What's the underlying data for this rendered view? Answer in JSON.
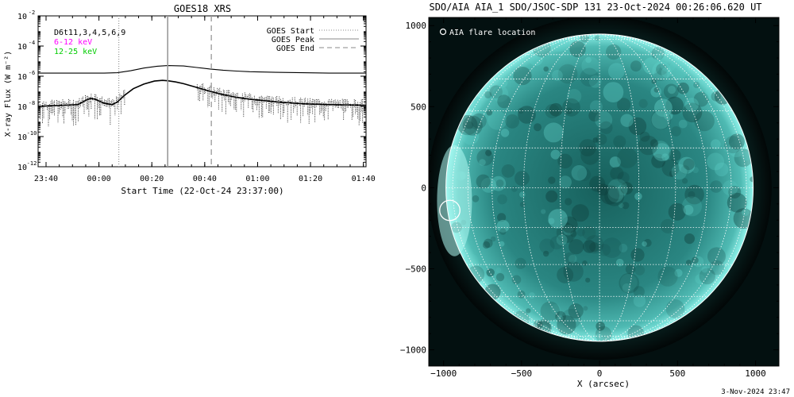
{
  "goes_chart": {
    "title": "GOES18 XRS",
    "ylabel": "X-ray Flux (W m⁻²)",
    "xlabel": "Start Time (22-Oct-24 23:37:00)",
    "legend_left": [
      {
        "text": "D6t11,3,4,5,6,9",
        "color": "#000000"
      },
      {
        "text": "6-12 keV",
        "color": "#ff00ff"
      },
      {
        "text": "12-25 keV",
        "color": "#00cc00"
      }
    ],
    "legend_right": [
      {
        "text": "GOES Start",
        "dash": "1,2",
        "color": "#888888"
      },
      {
        "text": "GOES Peak",
        "dash": "",
        "color": "#888888"
      },
      {
        "text": "GOES End",
        "dash": "6,4",
        "color": "#888888"
      }
    ]
  },
  "chart_data": [
    {
      "type": "line",
      "title": "GOES18 XRS",
      "xlabel": "Start Time (22-Oct-24 23:37:00)",
      "ylabel": "X-ray Flux (W m⁻²)",
      "x_units": "minutes after 22-Oct-24 23:37:00",
      "x_ticks": [
        {
          "t": 3,
          "label": "23:40"
        },
        {
          "t": 23,
          "label": "00:00"
        },
        {
          "t": 43,
          "label": "00:20"
        },
        {
          "t": 63,
          "label": "00:40"
        },
        {
          "t": 83,
          "label": "01:00"
        },
        {
          "t": 103,
          "label": "01:20"
        },
        {
          "t": 123,
          "label": "01:40"
        }
      ],
      "xlim": [
        0,
        124
      ],
      "y_scale": "log",
      "ylim": [
        1e-12,
        0.01
      ],
      "y_ticks": [
        {
          "v": -12,
          "label": "10",
          "exp": "-12"
        },
        {
          "v": -10,
          "label": "10",
          "exp": "-10"
        },
        {
          "v": -8,
          "label": "10",
          "exp": "-8"
        },
        {
          "v": -6,
          "label": "10",
          "exp": "-6"
        },
        {
          "v": -4,
          "label": "10",
          "exp": "-4"
        },
        {
          "v": -2,
          "label": "10",
          "exp": "-2"
        }
      ],
      "series": [
        {
          "name": "D6t11,3,4,5,6,9",
          "x": [
            0,
            10,
            20,
            25,
            30,
            35,
            40,
            45,
            49,
            55,
            60,
            65,
            70,
            75,
            80,
            90,
            100,
            110,
            124
          ],
          "y": [
            1.6e-06,
            1.6e-06,
            1.6e-06,
            1.6e-06,
            1.7e-06,
            2.3e-06,
            3.5e-06,
            4.6e-06,
            5.1e-06,
            4.8e-06,
            3.8e-06,
            3e-06,
            2.5e-06,
            2.2e-06,
            2e-06,
            1.8e-06,
            1.7e-06,
            1.6e-06,
            1.6e-06
          ]
        },
        {
          "name": "D6t11,3,4,5,6,9",
          "x": [
            0,
            5,
            10,
            15,
            18,
            20,
            22,
            25,
            28,
            30,
            33,
            36,
            40,
            44,
            47,
            49,
            52,
            55,
            60,
            65,
            70,
            75,
            80,
            90,
            100,
            110,
            124
          ],
          "y": [
            1e-08,
            1.1e-08,
            1.2e-08,
            1.3e-08,
            2.5e-08,
            3.5e-08,
            2.8e-08,
            1.6e-08,
            1.3e-08,
            2e-08,
            6e-08,
            1.5e-07,
            3e-07,
            4.8e-07,
            5.3e-07,
            5e-07,
            4.2e-07,
            3.2e-07,
            1.8e-07,
            1e-07,
            6e-08,
            4e-08,
            3e-08,
            2e-08,
            1.5e-08,
            1.3e-08,
            1.2e-08
          ]
        }
      ],
      "markers": [
        {
          "label": "GOES Start",
          "t": 30.5,
          "style": "dotted"
        },
        {
          "label": "GOES Peak",
          "t": 49,
          "style": "solid"
        },
        {
          "label": "GOES End",
          "t": 65.5,
          "style": "dashed"
        }
      ]
    },
    {
      "type": "scatter",
      "title": "SDO/AIA AIA_1 SDO/JSOC-SDP 131 23-Oct-2024 00:26:06.620 UT",
      "xlabel": "X (arcsec)",
      "ylabel": "",
      "xlim": [
        -1095,
        1150
      ],
      "ylim": [
        -1100,
        1050
      ],
      "x_ticks": [
        -1000,
        -500,
        0,
        500,
        1000
      ],
      "y_ticks": [
        -1000,
        -500,
        0,
        500,
        1000
      ],
      "solar_radius_arcsec": 985,
      "disk_color": "#2c8a86",
      "limb_glow_color": "#7fe8e0",
      "flare_marker": {
        "label": "AIA flare location",
        "x": -960,
        "y": -140,
        "r": 65
      }
    }
  ],
  "aia_panel": {
    "title": "SDO/AIA AIA_1 SDO/JSOC-SDP 131 23-Oct-2024 00:26:06.620 UT",
    "legend_label": "AIA flare location",
    "xlabel": "X (arcsec)"
  },
  "footer": {
    "timestamp": "3-Nov-2024 23:47"
  }
}
